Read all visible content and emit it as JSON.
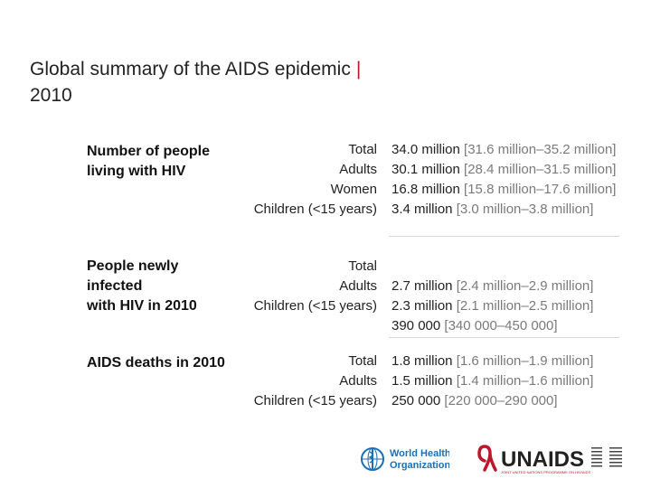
{
  "title": {
    "line1": "Global summary of the AIDS epidemic",
    "bar": "|",
    "line2": "2010"
  },
  "sections": [
    {
      "label_lines": [
        "Number of people",
        "living with HIV"
      ],
      "categories": [
        "Total",
        "Adults",
        "Women",
        "Children (<15 years)"
      ],
      "values": [
        {
          "main": "34.0 million",
          "range": "[31.6 million–35.2 million]"
        },
        {
          "main": "30.1 million",
          "range": "[28.4 million–31.5 million]"
        },
        {
          "main": "16.8 million",
          "range": "[15.8 million–17.6 million]"
        },
        {
          "main": "3.4 million",
          "range": "[3.0 million–3.8 million]"
        }
      ]
    },
    {
      "label_lines": [
        "People newly",
        "infected",
        "with HIV in 2010"
      ],
      "categories": [
        "Total",
        "Adults",
        "Children (<15 years)"
      ],
      "values": [
        {
          "main": "2.7 million",
          "range": "[2.4 million–2.9 million]"
        },
        {
          "main": "2.3 million",
          "range": "[2.1 million–2.5 million]"
        },
        {
          "main": "390 000",
          "range": "[340 000–450 000]"
        }
      ]
    },
    {
      "label_lines": [
        "AIDS deaths in 2010"
      ],
      "categories": [
        "Total",
        "Adults",
        "Children (<15 years)"
      ],
      "values": [
        {
          "main": "1.8 million",
          "range": "[1.6 million–1.9 million]"
        },
        {
          "main": "1.5 million",
          "range": "[1.4 million–1.6 million]"
        },
        {
          "main": "250 000",
          "range": "[220 000–290 000]"
        }
      ]
    }
  ],
  "logos": {
    "who": {
      "line1": "World Health",
      "line2": "Organization"
    },
    "unaids": {
      "name": "UNAIDS",
      "tagline": "JOINT UNITED NATIONS PROGRAMME ON HIV/AIDS"
    }
  },
  "colors": {
    "accent": "#c0142c",
    "who_blue": "#1a6fb5",
    "range_grey": "#7a7a7a"
  }
}
